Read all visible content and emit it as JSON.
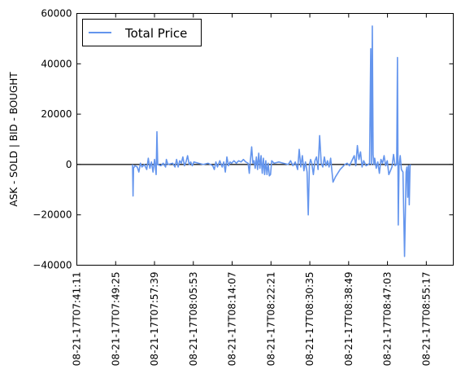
{
  "chart_data": {
    "type": "line",
    "ylabel": "ASK - SOLD | BID - BOUGHT",
    "xlabel": "",
    "ylim": [
      -40000,
      60000
    ],
    "yticks": [
      -40000,
      -20000,
      0,
      20000,
      40000,
      60000
    ],
    "ytick_labels": [
      "−40000",
      "−20000",
      "0",
      "20000",
      "40000",
      "60000"
    ],
    "xlim": [
      "08-21-17T07:41:11",
      "08-21-17T09:01:00"
    ],
    "xtick_labels": [
      "08-21-17T07:41:11",
      "08-21-17T07:49:25",
      "08-21-17T07:57:39",
      "08-21-17T08:05:53",
      "08-21-17T08:14:07",
      "08-21-17T08:22:21",
      "08-21-17T08:30:35",
      "08-21-17T08:38:49",
      "08-21-17T08:47:03",
      "08-21-17T08:55:17"
    ],
    "legend": {
      "position": "top-left",
      "entries": [
        "Total Price"
      ]
    },
    "reference_line": {
      "y": 0,
      "color": "#000000"
    },
    "grid": false,
    "series": [
      {
        "name": "Total Price",
        "color": "#6495ed",
        "points": [
          [
            "08-21-17T07:53:00",
            0
          ],
          [
            "08-21-17T07:53:06",
            -12500
          ],
          [
            "08-21-17T07:53:12",
            -1500
          ],
          [
            "08-21-17T07:53:30",
            -500
          ],
          [
            "08-21-17T07:54:00",
            -1000
          ],
          [
            "08-21-17T07:54:20",
            -3000
          ],
          [
            "08-21-17T07:54:40",
            500
          ],
          [
            "08-21-17T07:55:00",
            -1000
          ],
          [
            "08-21-17T07:55:30",
            0
          ],
          [
            "08-21-17T07:56:00",
            -2000
          ],
          [
            "08-21-17T07:56:20",
            2500
          ],
          [
            "08-21-17T07:56:40",
            -1500
          ],
          [
            "08-21-17T07:57:00",
            1000
          ],
          [
            "08-21-17T07:57:20",
            -3000
          ],
          [
            "08-21-17T07:57:40",
            2000
          ],
          [
            "08-21-17T07:58:00",
            -4000
          ],
          [
            "08-21-17T07:58:10",
            13000
          ],
          [
            "08-21-17T07:58:20",
            0
          ],
          [
            "08-21-17T07:59:00",
            -500
          ],
          [
            "08-21-17T07:59:30",
            500
          ],
          [
            "08-21-17T08:00:00",
            -1000
          ],
          [
            "08-21-17T08:00:10",
            2000
          ],
          [
            "08-21-17T08:00:30",
            0
          ],
          [
            "08-21-17T08:01:30",
            500
          ],
          [
            "08-21-17T08:02:00",
            -1000
          ],
          [
            "08-21-17T08:02:20",
            2000
          ],
          [
            "08-21-17T08:02:40",
            -1000
          ],
          [
            "08-21-17T08:03:00",
            1500
          ],
          [
            "08-21-17T08:03:20",
            500
          ],
          [
            "08-21-17T08:03:40",
            3000
          ],
          [
            "08-21-17T08:04:00",
            -500
          ],
          [
            "08-21-17T08:04:20",
            1000
          ],
          [
            "08-21-17T08:04:40",
            3500
          ],
          [
            "08-21-17T08:05:00",
            0
          ],
          [
            "08-21-17T08:05:20",
            1000
          ],
          [
            "08-21-17T08:05:40",
            -500
          ],
          [
            "08-21-17T08:06:00",
            1000
          ],
          [
            "08-21-17T08:07:00",
            500
          ],
          [
            "08-21-17T08:08:00",
            0
          ],
          [
            "08-21-17T08:09:00",
            500
          ],
          [
            "08-21-17T08:10:00",
            -500
          ],
          [
            "08-21-17T08:10:20",
            -2000
          ],
          [
            "08-21-17T08:10:40",
            1000
          ],
          [
            "08-21-17T08:11:00",
            -1000
          ],
          [
            "08-21-17T08:11:30",
            1500
          ],
          [
            "08-21-17T08:12:00",
            -1000
          ],
          [
            "08-21-17T08:12:20",
            1000
          ],
          [
            "08-21-17T08:12:40",
            -3000
          ],
          [
            "08-21-17T08:13:00",
            3000
          ],
          [
            "08-21-17T08:13:20",
            -500
          ],
          [
            "08-21-17T08:13:40",
            1000
          ],
          [
            "08-21-17T08:14:00",
            500
          ],
          [
            "08-21-17T08:14:30",
            1500
          ],
          [
            "08-21-17T08:15:00",
            500
          ],
          [
            "08-21-17T08:15:30",
            1500
          ],
          [
            "08-21-17T08:16:00",
            1000
          ],
          [
            "08-21-17T08:16:30",
            2000
          ],
          [
            "08-21-17T08:17:00",
            1000
          ],
          [
            "08-21-17T08:17:30",
            500
          ],
          [
            "08-21-17T08:17:45",
            -3500
          ],
          [
            "08-21-17T08:18:00",
            2000
          ],
          [
            "08-21-17T08:18:15",
            7000
          ],
          [
            "08-21-17T08:18:30",
            500
          ],
          [
            "08-21-17T08:18:45",
            1500
          ],
          [
            "08-21-17T08:19:00",
            -1500
          ],
          [
            "08-21-17T08:19:15",
            3000
          ],
          [
            "08-21-17T08:19:30",
            -2000
          ],
          [
            "08-21-17T08:19:45",
            4500
          ],
          [
            "08-21-17T08:20:00",
            -1500
          ],
          [
            "08-21-17T08:20:15",
            3500
          ],
          [
            "08-21-17T08:20:30",
            -3500
          ],
          [
            "08-21-17T08:20:45",
            2500
          ],
          [
            "08-21-17T08:21:00",
            -4000
          ],
          [
            "08-21-17T08:21:15",
            1500
          ],
          [
            "08-21-17T08:21:30",
            -4000
          ],
          [
            "08-21-17T08:21:45",
            500
          ],
          [
            "08-21-17T08:22:00",
            -4500
          ],
          [
            "08-21-17T08:22:15",
            -4000
          ],
          [
            "08-21-17T08:22:30",
            1500
          ],
          [
            "08-21-17T08:23:00",
            500
          ],
          [
            "08-21-17T08:24:00",
            1000
          ],
          [
            "08-21-17T08:25:00",
            500
          ],
          [
            "08-21-17T08:26:00",
            0
          ],
          [
            "08-21-17T08:26:30",
            1500
          ],
          [
            "08-21-17T08:27:00",
            -500
          ],
          [
            "08-21-17T08:27:30",
            1000
          ],
          [
            "08-21-17T08:28:00",
            -2000
          ],
          [
            "08-21-17T08:28:20",
            6000
          ],
          [
            "08-21-17T08:28:40",
            -1000
          ],
          [
            "08-21-17T08:29:00",
            3500
          ],
          [
            "08-21-17T08:29:20",
            -2500
          ],
          [
            "08-21-17T08:29:40",
            1000
          ],
          [
            "08-21-17T08:30:00",
            -3000
          ],
          [
            "08-21-17T08:30:15",
            -20000
          ],
          [
            "08-21-17T08:30:30",
            0
          ],
          [
            "08-21-17T08:30:45",
            2000
          ],
          [
            "08-21-17T08:31:00",
            500
          ],
          [
            "08-21-17T08:31:20",
            -4000
          ],
          [
            "08-21-17T08:31:40",
            1500
          ],
          [
            "08-21-17T08:32:00",
            3000
          ],
          [
            "08-21-17T08:32:20",
            -2000
          ],
          [
            "08-21-17T08:32:40",
            11500
          ],
          [
            "08-21-17T08:33:00",
            500
          ],
          [
            "08-21-17T08:33:20",
            -1000
          ],
          [
            "08-21-17T08:33:40",
            3000
          ],
          [
            "08-21-17T08:34:00",
            -500
          ],
          [
            "08-21-17T08:34:20",
            1500
          ],
          [
            "08-21-17T08:34:40",
            -1000
          ],
          [
            "08-21-17T08:35:00",
            2500
          ],
          [
            "08-21-17T08:35:30",
            -7000
          ],
          [
            "08-21-17T08:36:00",
            -5000
          ],
          [
            "08-21-17T08:37:00",
            -2000
          ],
          [
            "08-21-17T08:38:00",
            0
          ],
          [
            "08-21-17T08:38:30",
            500
          ],
          [
            "08-21-17T08:39:00",
            -500
          ],
          [
            "08-21-17T08:39:30",
            1500
          ],
          [
            "08-21-17T08:40:00",
            3500
          ],
          [
            "08-21-17T08:40:20",
            -500
          ],
          [
            "08-21-17T08:40:40",
            7500
          ],
          [
            "08-21-17T08:41:00",
            2000
          ],
          [
            "08-21-17T08:41:20",
            5000
          ],
          [
            "08-21-17T08:41:40",
            -1000
          ],
          [
            "08-21-17T08:42:00",
            1500
          ],
          [
            "08-21-17T08:42:30",
            -500
          ],
          [
            "08-21-17T08:43:00",
            0
          ],
          [
            "08-21-17T08:43:15",
            500
          ],
          [
            "08-21-17T08:43:30",
            46000
          ],
          [
            "08-21-17T08:43:40",
            0
          ],
          [
            "08-21-17T08:43:50",
            55000
          ],
          [
            "08-21-17T08:44:00",
            4000
          ],
          [
            "08-21-17T08:44:10",
            0
          ],
          [
            "08-21-17T08:44:20",
            2500
          ],
          [
            "08-21-17T08:44:40",
            -1500
          ],
          [
            "08-21-17T08:45:00",
            1000
          ],
          [
            "08-21-17T08:45:20",
            -3500
          ],
          [
            "08-21-17T08:45:40",
            2000
          ],
          [
            "08-21-17T08:46:00",
            500
          ],
          [
            "08-21-17T08:46:20",
            3500
          ],
          [
            "08-21-17T08:46:40",
            -500
          ],
          [
            "08-21-17T08:47:00",
            1500
          ],
          [
            "08-21-17T08:47:20",
            -4000
          ],
          [
            "08-21-17T08:47:40",
            -2500
          ],
          [
            "08-21-17T08:48:00",
            -1000
          ],
          [
            "08-21-17T08:48:20",
            4000
          ],
          [
            "08-21-17T08:48:40",
            -500
          ],
          [
            "08-21-17T08:49:00",
            0
          ],
          [
            "08-21-17T08:49:10",
            42500
          ],
          [
            "08-21-17T08:49:20",
            -24000
          ],
          [
            "08-21-17T08:49:30",
            -500
          ],
          [
            "08-21-17T08:49:45",
            3500
          ],
          [
            "08-21-17T08:50:00",
            -2000
          ],
          [
            "08-21-17T08:50:20",
            -3000
          ],
          [
            "08-21-17T08:50:40",
            -36500
          ],
          [
            "08-21-17T08:51:00",
            -3000
          ],
          [
            "08-21-17T08:51:10",
            -1000
          ],
          [
            "08-21-17T08:51:20",
            -13000
          ],
          [
            "08-21-17T08:51:30",
            -500
          ],
          [
            "08-21-17T08:51:40",
            -16000
          ],
          [
            "08-21-17T08:51:50",
            -500
          ],
          [
            "08-21-17T08:52:00",
            0
          ]
        ]
      }
    ]
  }
}
